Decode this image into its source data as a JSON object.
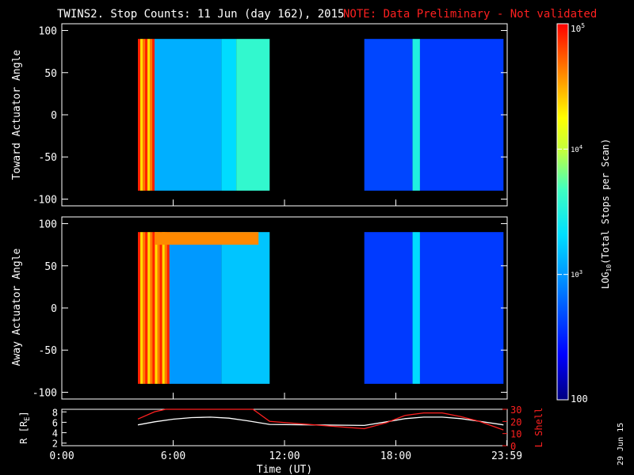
{
  "header": {
    "title": "TWINS2. Stop Counts: 11 Jun (day 162), 2015",
    "note": "NOTE: Data Preliminary - Not validated",
    "note_color": "#ff2020"
  },
  "side_label": "29 Jun 15",
  "chart_data": [
    {
      "type": "heatmap",
      "panel": "top",
      "ylabel": "Toward Actuator Angle",
      "ylim": [
        -108,
        108
      ],
      "yticks": [
        100,
        50,
        0,
        -50,
        -100
      ],
      "xlim_hours": [
        0,
        24
      ],
      "data_segments_hours": [
        [
          4.1,
          11.2
        ],
        [
          16.3,
          23.8
        ]
      ],
      "description_levels": [
        {
          "x_hours": [
            4.1,
            5.0
          ],
          "log_counts": 4.9,
          "note": "striped high counts"
        },
        {
          "x_hours": [
            5.0,
            8.6
          ],
          "log_counts": 3.1
        },
        {
          "x_hours": [
            8.6,
            9.4
          ],
          "log_counts": 3.3
        },
        {
          "x_hours": [
            9.4,
            11.2
          ],
          "log_counts": 3.6
        },
        {
          "x_hours": [
            16.3,
            18.9
          ],
          "log_counts": 2.65
        },
        {
          "x_hours": [
            18.9,
            19.3
          ],
          "log_counts": 3.5
        },
        {
          "x_hours": [
            19.3,
            23.8
          ],
          "log_counts": 2.6
        }
      ]
    },
    {
      "type": "heatmap",
      "panel": "middle",
      "ylabel": "Away Actuator Angle",
      "ylim": [
        -108,
        108
      ],
      "yticks": [
        100,
        50,
        0,
        -50,
        -100
      ],
      "xlim_hours": [
        0,
        24
      ],
      "data_segments_hours": [
        [
          4.1,
          11.2
        ],
        [
          16.3,
          23.8
        ]
      ],
      "description_levels": [
        {
          "x_hours": [
            4.1,
            5.8
          ],
          "log_counts": 4.9,
          "note": "striped high counts"
        },
        {
          "x_hours": [
            5.8,
            8.6
          ],
          "log_counts": 3.0
        },
        {
          "x_hours": [
            8.6,
            11.2
          ],
          "log_counts": 3.2
        },
        {
          "x_hours": [
            16.3,
            18.9
          ],
          "log_counts": 2.6
        },
        {
          "x_hours": [
            18.9,
            19.3
          ],
          "log_counts": 3.3
        },
        {
          "x_hours": [
            19.3,
            23.8
          ],
          "log_counts": 2.6
        }
      ],
      "high_band": {
        "angle": [
          75,
          90
        ],
        "x_hours": [
          5.0,
          10.6
        ],
        "log_counts": 4.6
      }
    },
    {
      "type": "line",
      "panel": "bottom",
      "xlabel": "Time (UT)",
      "xtick_labels": [
        "0:00",
        "6:00",
        "12:00",
        "18:00",
        "23:59"
      ],
      "xtick_hours": [
        0,
        6,
        12,
        18,
        23.98
      ],
      "ylabel_left": "R [R",
      "ylabel_left_sub": "E",
      "ylabel_left_end": "]",
      "ylim_left": [
        1.5,
        8.5
      ],
      "yticks_left": [
        2,
        4,
        6,
        8
      ],
      "ylabel_right": "L Shell",
      "ylim_right": [
        0,
        30
      ],
      "yticks_right": [
        0,
        10,
        20,
        30
      ],
      "series": [
        {
          "axis": "left",
          "color": "#ffffff",
          "x": [
            4.1,
            5.0,
            6.0,
            7.0,
            8.0,
            9.0,
            10.0,
            11.2,
            16.3,
            17.5,
            18.5,
            19.5,
            20.5,
            21.5,
            22.5,
            23.8
          ],
          "y": [
            5.5,
            6.1,
            6.6,
            6.9,
            7.0,
            6.8,
            6.3,
            5.6,
            5.4,
            6.1,
            6.7,
            7.0,
            7.0,
            6.7,
            6.2,
            5.5
          ]
        },
        {
          "axis": "right",
          "color": "#ff2020",
          "x": [
            4.1,
            5.0,
            5.6,
            10.3,
            11.2,
            16.3,
            17.5,
            18.5,
            19.5,
            20.5,
            21.5,
            22.5,
            23.8
          ],
          "y": [
            22,
            28,
            35,
            35,
            20,
            14,
            19,
            25,
            27,
            27,
            24,
            20,
            13
          ]
        }
      ]
    },
    {
      "type": "colorbar",
      "label": "LOG",
      "label_sub": "10",
      "label_end": "(Total Stops per Scan)",
      "scale": "log",
      "range": [
        100,
        100000
      ],
      "tick_labels": {
        "top": "10",
        "top_exp": "5",
        "mid1": "10",
        "mid1_exp": "4",
        "mid2": "10",
        "mid2_exp": "3",
        "bottom": "100"
      }
    }
  ]
}
